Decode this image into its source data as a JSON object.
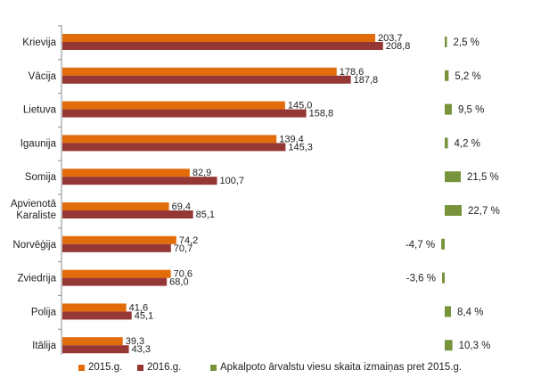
{
  "chart_data": {
    "type": "bar",
    "orientation": "horizontal",
    "categories": [
      [
        "Krievija"
      ],
      [
        "Vācija"
      ],
      [
        "Lietuva"
      ],
      [
        "Igaunija"
      ],
      [
        "Somija"
      ],
      [
        "Apvienotā",
        "Karaliste"
      ],
      [
        "Norvēģija"
      ],
      [
        "Zviedrija"
      ],
      [
        "Polija"
      ],
      [
        "Itālija"
      ]
    ],
    "series": [
      {
        "name": "2015.g.",
        "color": "#E36C0A",
        "values": [
          203.7,
          178.6,
          145.0,
          139.4,
          82.9,
          69.4,
          74.2,
          70.6,
          41.6,
          39.3
        ],
        "labels": [
          "203,7",
          "178,6",
          "145,0",
          "139,4",
          "82,9",
          "69,4",
          "74,2",
          "70,6",
          "41,6",
          "39,3"
        ]
      },
      {
        "name": "2016.g.",
        "color": "#953735",
        "values": [
          208.8,
          187.8,
          158.8,
          145.3,
          100.7,
          85.1,
          70.7,
          68.0,
          45.1,
          43.3
        ],
        "labels": [
          "208,8",
          "187,8",
          "158,8",
          "145,3",
          "100,7",
          "85,1",
          "70,7",
          "68,0",
          "45,1",
          "43,3"
        ]
      }
    ],
    "change": {
      "name": "Apkalpoto ārvalstu viesu skaita izmaiņas pret 2015.g.",
      "color": "#77933C",
      "values": [
        2.5,
        5.2,
        9.5,
        4.2,
        21.5,
        22.7,
        -4.7,
        -3.6,
        8.4,
        10.3
      ],
      "labels": [
        "2,5 %",
        "5,2 %",
        "9,5 %",
        "4,2 %",
        "21,5 %",
        "22,7 %",
        "-4,7 %",
        "-3,6 %",
        "8,4 %",
        "10,3 %"
      ]
    },
    "legend_position": "bottom",
    "grid": false
  }
}
